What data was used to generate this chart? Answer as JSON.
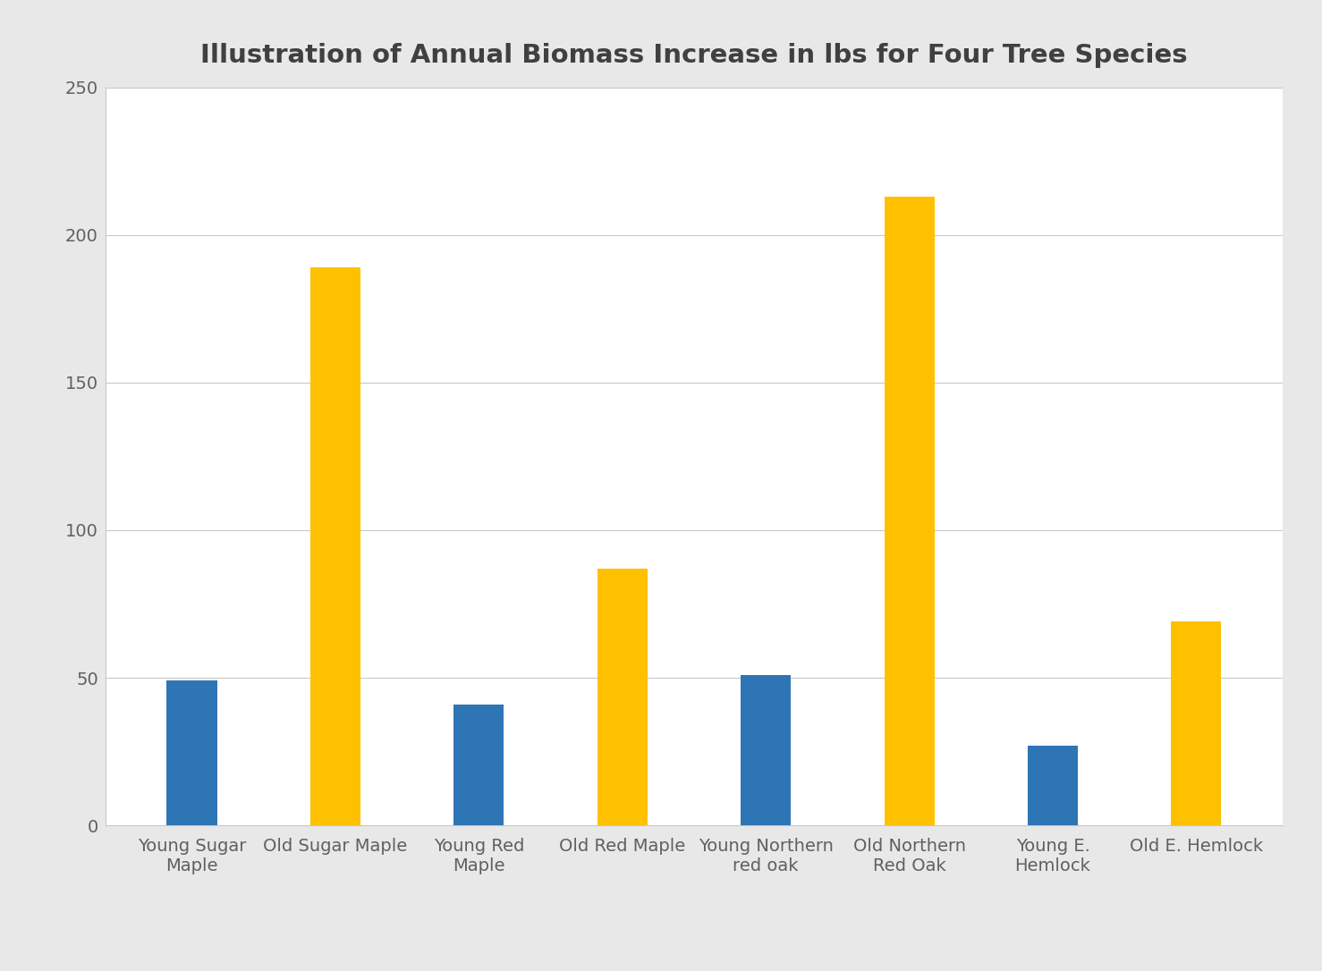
{
  "title": "Illustration of Annual Biomass Increase in lbs for Four Tree Species",
  "categories": [
    "Young Sugar\nMaple",
    "Old Sugar Maple",
    "Young Red\nMaple",
    "Old Red Maple",
    "Young Northern\nred oak",
    "Old Northern\nRed Oak",
    "Young E.\nHemlock",
    "Old E. Hemlock"
  ],
  "values": [
    49,
    189,
    41,
    87,
    51,
    213,
    27,
    69
  ],
  "bar_colors": [
    "#2E75B6",
    "#FFC000",
    "#2E75B6",
    "#FFC000",
    "#2E75B6",
    "#FFC000",
    "#2E75B6",
    "#FFC000"
  ],
  "ylim": [
    0,
    250
  ],
  "yticks": [
    0,
    50,
    100,
    150,
    200,
    250
  ],
  "plot_bg_color": "#FFFFFF",
  "fig_bg_color": "#E8E8E8",
  "grid_color": "#C8C8C8",
  "title_fontsize": 21,
  "tick_fontsize": 14,
  "bar_width": 0.35,
  "title_color": "#404040",
  "tick_color": "#606060"
}
